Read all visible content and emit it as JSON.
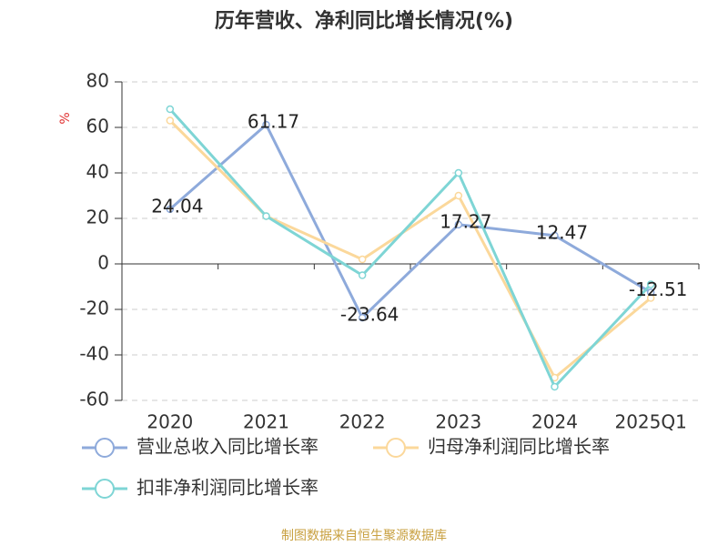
{
  "chart_data": {
    "type": "line",
    "title": "历年营收、净利同比增长情况(%)",
    "y_label": "%",
    "categories": [
      "2020",
      "2021",
      "2022",
      "2023",
      "2024",
      "2025Q1"
    ],
    "series": [
      {
        "name": "营业总收入同比增长率",
        "color": "#8eaadb",
        "values": [
          24.04,
          61.17,
          -23.64,
          17.27,
          12.47,
          -12.51
        ],
        "show_labels": true
      },
      {
        "name": "归母净利润同比增长率",
        "color": "#fbd89b",
        "values": [
          63,
          21,
          2,
          30,
          -50,
          -15
        ],
        "show_labels": false
      },
      {
        "name": "扣非净利润同比增长率",
        "color": "#7ed5d5",
        "values": [
          68,
          21,
          -5,
          40,
          -54,
          -9
        ],
        "show_labels": false
      }
    ],
    "ylim": [
      -60,
      80
    ],
    "yticks": [
      -60,
      -40,
      -20,
      0,
      20,
      40,
      60,
      80
    ],
    "grid": true,
    "source": "制图数据来自恒生聚源数据库"
  }
}
